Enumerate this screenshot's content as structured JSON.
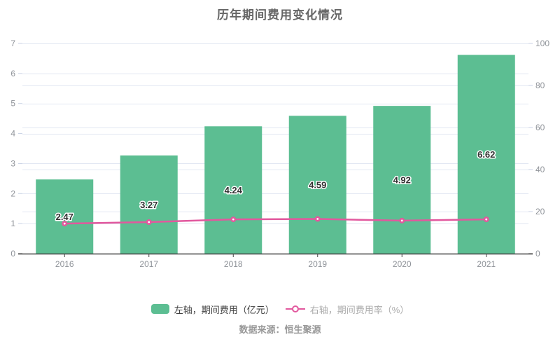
{
  "chart_data": {
    "type": "bar",
    "title": "历年期间费用变化情况",
    "categories": [
      "2016",
      "2017",
      "2018",
      "2019",
      "2020",
      "2021"
    ],
    "series": [
      {
        "name": "左轴，期间费用（亿元）",
        "type": "bar",
        "axis": "left",
        "values": [
          2.47,
          3.27,
          4.24,
          4.59,
          4.92,
          6.62
        ],
        "labels": [
          "2.47",
          "3.27",
          "4.24",
          "4.59",
          "4.92",
          "6.62"
        ]
      },
      {
        "name": "右轴，期间费用率（%）",
        "type": "line",
        "axis": "right",
        "values": [
          14.3,
          15.0,
          16.3,
          16.5,
          15.7,
          16.3
        ]
      }
    ],
    "left_axis": {
      "min": 0,
      "max": 7,
      "ticks": [
        0,
        1,
        2,
        3,
        4,
        5,
        6,
        7
      ]
    },
    "right_axis": {
      "min": 0,
      "max": 100,
      "ticks": [
        0,
        20,
        40,
        60,
        80,
        100
      ]
    },
    "grid": true,
    "legend_position": "bottom"
  },
  "source": {
    "label": "数据来源：恒生聚源"
  },
  "colors": {
    "bar": "#5cbe92",
    "line": "#e2589e",
    "line_marker_center": "#ffffff",
    "grid": "#e2e7f2",
    "tick": "#c9d2e4",
    "axis": "#444444",
    "axis_label": "#8f9399",
    "title": "#666666",
    "bar_label": "#333333",
    "legend_bar_text": "#404040",
    "legend_line_text": "#ababab",
    "source_text": "#999999"
  }
}
